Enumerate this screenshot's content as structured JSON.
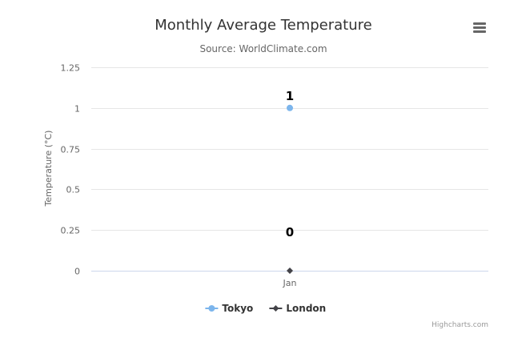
{
  "chart_data": {
    "type": "line",
    "title": "Monthly Average Temperature",
    "subtitle": "Source: WorldClimate.com",
    "xlabel": "",
    "ylabel": "Temperature (°C)",
    "categories": [
      "Jan"
    ],
    "ylim": [
      0,
      1.25
    ],
    "yticks": [
      "0",
      "0.25",
      "0.5",
      "0.75",
      "1",
      "1.25"
    ],
    "grid": true,
    "legend_position": "bottom",
    "series": [
      {
        "name": "Tokyo",
        "values": [
          1
        ],
        "color": "#7cb5ec",
        "marker": "circle",
        "data_labels": [
          "1"
        ]
      },
      {
        "name": "London",
        "values": [
          0
        ],
        "color": "#434348",
        "marker": "diamond",
        "data_labels": [
          "0"
        ]
      }
    ]
  },
  "credits": "Highcharts.com",
  "menu_icon": "hamburger-menu-icon"
}
